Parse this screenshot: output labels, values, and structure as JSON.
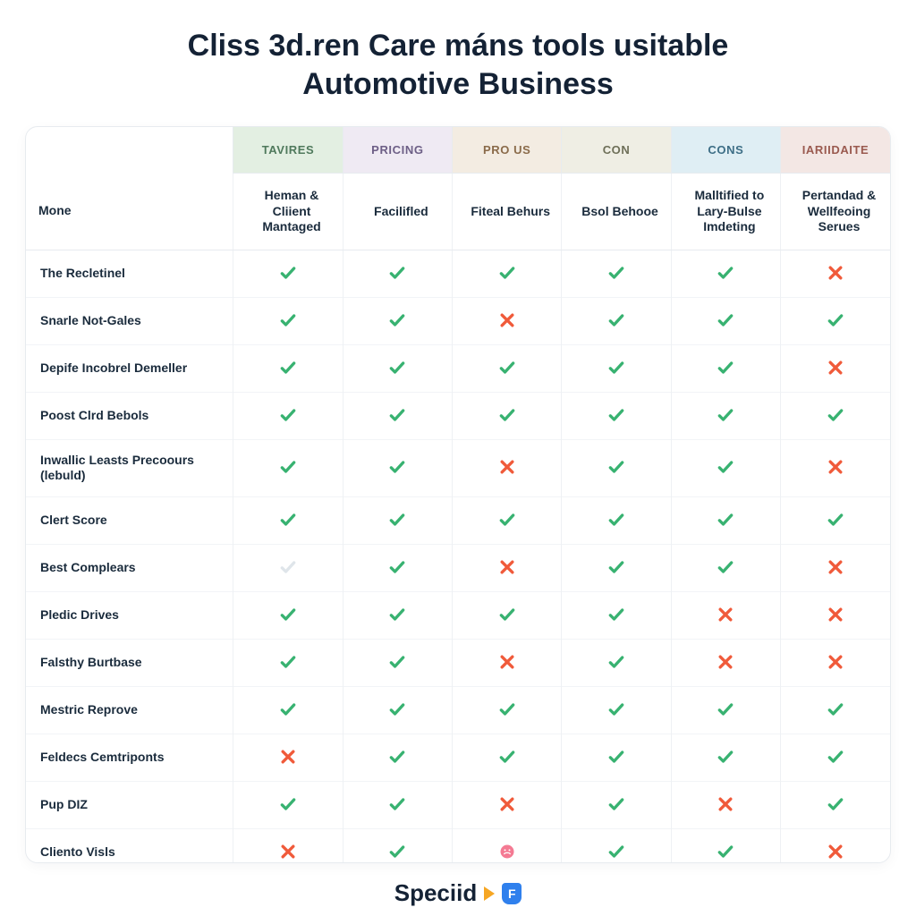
{
  "title_line1": "Cliss 3d.ren Care máns tools usitable",
  "title_line2": "Automotive Business",
  "colors": {
    "check": "#38b271",
    "cross": "#f05a3a",
    "check_faded": "#dfe5ea",
    "circle": "#f47a93",
    "header_bgs": [
      "#e3efe2",
      "#efeaf3",
      "#f3ece2",
      "#efeee4",
      "#dfeef4",
      "#f3e7e4"
    ],
    "header_fg": [
      "#4f795c",
      "#6d5f86",
      "#8a6b4a",
      "#6e6f58",
      "#3d6e86",
      "#9a5a4f"
    ],
    "grid": "#eef1f4",
    "border": "#e7ebef",
    "text": "#1a2b3c"
  },
  "top_headers": [
    "TAVIRES",
    "PRICING",
    "PRO US",
    "CON",
    "CONS",
    "IARIIDAITE"
  ],
  "sub_headers_rowlabel": "Mone",
  "sub_headers": [
    "Heman & Cliient Mantaged",
    "Facilifled",
    "Fiteal Behurs",
    "Bsol Behooe",
    "Malltified to Lary-Bulse Imdeting",
    "Pertandad & Wellfeoing Serues"
  ],
  "mark_legend": {
    "c": "check",
    "x": "cross",
    "f": "check_faded",
    "o": "circle"
  },
  "rows": [
    {
      "label": "The Recletinel",
      "cells": [
        "c",
        "c",
        "c",
        "c",
        "c",
        "x"
      ]
    },
    {
      "label": "Snarle Not-Gales",
      "cells": [
        "c",
        "c",
        "x",
        "c",
        "c",
        "c"
      ]
    },
    {
      "label": "Depife Incobrel Demeller",
      "cells": [
        "c",
        "c",
        "c",
        "c",
        "c",
        "x"
      ]
    },
    {
      "label": "Poost Clrd Bebols",
      "cells": [
        "c",
        "c",
        "c",
        "c",
        "c",
        "c"
      ]
    },
    {
      "label": "Inwallic Leasts Precoours (lebuld)",
      "cells": [
        "c",
        "c",
        "x",
        "c",
        "c",
        "x"
      ]
    },
    {
      "label": "Clert Score",
      "cells": [
        "c",
        "c",
        "c",
        "c",
        "c",
        "c"
      ]
    },
    {
      "label": "Best Complears",
      "cells": [
        "f",
        "c",
        "x",
        "c",
        "c",
        "x"
      ]
    },
    {
      "label": "Pledic Drives",
      "cells": [
        "c",
        "c",
        "c",
        "c",
        "x",
        "x"
      ]
    },
    {
      "label": "Falsthy Burtbase",
      "cells": [
        "c",
        "c",
        "x",
        "c",
        "x",
        "x"
      ]
    },
    {
      "label": "Mestric Reprove",
      "cells": [
        "c",
        "c",
        "c",
        "c",
        "c",
        "c"
      ]
    },
    {
      "label": "Feldecs Cemtriponts",
      "cells": [
        "x",
        "c",
        "c",
        "c",
        "c",
        "c"
      ]
    },
    {
      "label": "Pup DIZ",
      "cells": [
        "c",
        "c",
        "x",
        "c",
        "x",
        "c"
      ]
    },
    {
      "label": "Cliento Visls",
      "cells": [
        "x",
        "c",
        "o",
        "c",
        "c",
        "x"
      ]
    }
  ],
  "footer_brand": "Speciid",
  "footer_badge_letter": "F"
}
